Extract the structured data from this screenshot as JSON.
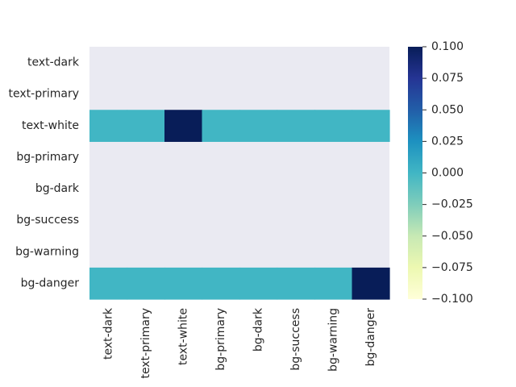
{
  "chart_data": {
    "type": "heatmap",
    "rows": [
      "text-dark",
      "text-primary",
      "text-white",
      "bg-primary",
      "bg-dark",
      "bg-success",
      "bg-warning",
      "bg-danger"
    ],
    "columns": [
      "text-dark",
      "text-primary",
      "text-white",
      "bg-primary",
      "bg-dark",
      "bg-success",
      "bg-warning",
      "bg-danger"
    ],
    "values": [
      [
        null,
        null,
        null,
        null,
        null,
        null,
        null,
        null
      ],
      [
        null,
        null,
        null,
        null,
        null,
        null,
        null,
        null
      ],
      [
        0,
        0,
        1,
        0,
        0,
        0,
        0,
        0
      ],
      [
        null,
        null,
        null,
        null,
        null,
        null,
        null,
        null
      ],
      [
        null,
        null,
        null,
        null,
        null,
        null,
        null,
        null
      ],
      [
        null,
        null,
        null,
        null,
        null,
        null,
        null,
        null
      ],
      [
        null,
        null,
        null,
        null,
        null,
        null,
        null,
        null
      ],
      [
        0,
        0,
        0,
        0,
        0,
        0,
        0,
        1
      ]
    ],
    "missing_color": "#eaeaf2",
    "colormap": "YlGnBu",
    "colorbar": {
      "vmin": -0.1,
      "vmax": 0.1,
      "ticks": [
        "0.100",
        "0.075",
        "0.050",
        "0.025",
        "0.000",
        "−0.025",
        "−0.050",
        "−0.075",
        "−0.100"
      ]
    },
    "colors": {
      "zero": "#41b6c4",
      "high": "#081d58"
    }
  }
}
